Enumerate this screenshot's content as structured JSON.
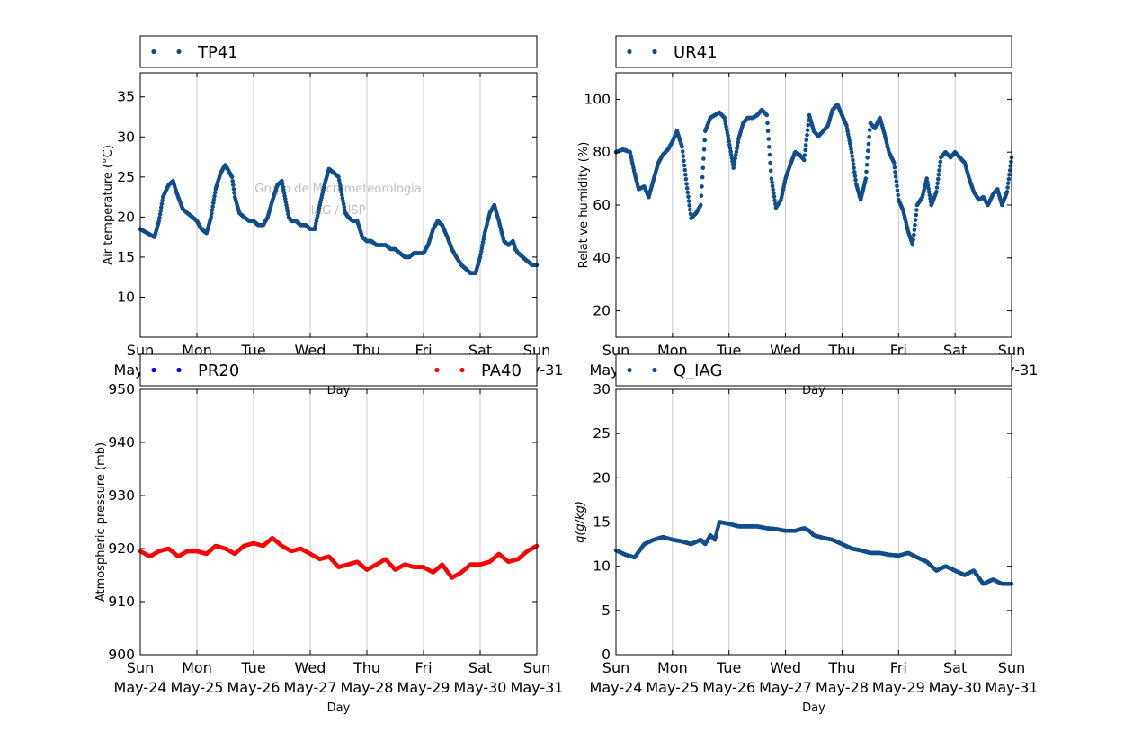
{
  "colors": {
    "dark_blue": "#104e8b",
    "blue": "#0000ff",
    "red": "#ff0000",
    "grid": "#c8c8c8",
    "watermark": "#c0c0c0"
  },
  "watermark": {
    "line1": "Grupo de Micrometeorologia",
    "line2": "IAG / USP"
  },
  "day_ticks": [
    {
      "day": "Sun",
      "date": "May-24"
    },
    {
      "day": "Mon",
      "date": "May-25"
    },
    {
      "day": "Tue",
      "date": "May-26"
    },
    {
      "day": "Wed",
      "date": "May-27"
    },
    {
      "day": "Thu",
      "date": "May-28"
    },
    {
      "day": "Fri",
      "date": "May-29"
    },
    {
      "day": "Sat",
      "date": "May-30"
    },
    {
      "day": "Sun",
      "date": "May-31"
    }
  ],
  "chart_data": [
    {
      "type": "scatter",
      "panel": "top-left",
      "xlabel": "Day",
      "ylabel": "Air temperature (°C)",
      "ylim": [
        5,
        38
      ],
      "yticks": [
        10,
        15,
        20,
        25,
        30,
        35
      ],
      "xlim": [
        0,
        7
      ],
      "grid": "vertical",
      "legend": "top",
      "series": [
        {
          "name": "TP41",
          "color": "#104e8b",
          "x": [
            0.0,
            0.125,
            0.25,
            0.33,
            0.4,
            0.5,
            0.58,
            0.62,
            0.67,
            0.75,
            0.83,
            0.92,
            1.0,
            1.08,
            1.17,
            1.25,
            1.33,
            1.42,
            1.5,
            1.58,
            1.62,
            1.67,
            1.75,
            1.83,
            1.92,
            2.0,
            2.08,
            2.17,
            2.25,
            2.33,
            2.42,
            2.5,
            2.58,
            2.62,
            2.67,
            2.75,
            2.83,
            2.92,
            3.0,
            3.08,
            3.17,
            3.25,
            3.33,
            3.42,
            3.5,
            3.58,
            3.62,
            3.67,
            3.75,
            3.83,
            3.92,
            4.0,
            4.08,
            4.17,
            4.25,
            4.33,
            4.42,
            4.5,
            4.58,
            4.67,
            4.75,
            4.83,
            4.92,
            5.0,
            5.08,
            5.17,
            5.25,
            5.33,
            5.42,
            5.5,
            5.58,
            5.67,
            5.75,
            5.83,
            5.92,
            6.0,
            6.08,
            6.17,
            6.25,
            6.33,
            6.42,
            6.5,
            6.58,
            6.62,
            6.67,
            6.75,
            6.83,
            6.92,
            7.0
          ],
          "y": [
            18.5,
            18.0,
            17.5,
            19.5,
            22.5,
            24.0,
            24.5,
            23.5,
            22.5,
            21.0,
            20.5,
            20.0,
            19.5,
            18.5,
            18.0,
            20.0,
            23.5,
            25.5,
            26.5,
            25.5,
            25.0,
            22.5,
            20.5,
            20.0,
            19.5,
            19.5,
            19.0,
            19.0,
            20.0,
            22.0,
            24.0,
            24.5,
            21.5,
            20.0,
            19.5,
            19.5,
            19.0,
            19.0,
            18.5,
            18.5,
            21.5,
            24.0,
            26.0,
            25.5,
            25.0,
            22.0,
            20.5,
            20.0,
            19.5,
            19.5,
            17.5,
            17.0,
            17.0,
            16.5,
            16.5,
            16.5,
            16.0,
            16.0,
            15.5,
            15.0,
            15.0,
            15.5,
            15.5,
            15.5,
            16.5,
            18.5,
            19.5,
            19.0,
            17.5,
            16.0,
            15.0,
            14.0,
            13.5,
            13.0,
            13.0,
            15.0,
            18.0,
            20.5,
            21.5,
            19.5,
            17.0,
            16.5,
            17.0,
            16.0,
            15.5,
            15.0,
            14.5,
            14.0,
            14.0
          ]
        }
      ]
    },
    {
      "type": "scatter",
      "panel": "top-right",
      "xlabel": "Day",
      "ylabel": "Relative humidity (%)",
      "ylim": [
        10,
        110
      ],
      "yticks": [
        20,
        40,
        60,
        80,
        100
      ],
      "xlim": [
        0,
        7
      ],
      "grid": "vertical",
      "legend": "top",
      "series": [
        {
          "name": "UR41",
          "color": "#104e8b",
          "x": [
            0.0,
            0.125,
            0.25,
            0.33,
            0.4,
            0.5,
            0.58,
            0.67,
            0.75,
            0.83,
            0.92,
            1.0,
            1.08,
            1.17,
            1.25,
            1.33,
            1.42,
            1.5,
            1.58,
            1.67,
            1.75,
            1.83,
            1.92,
            2.0,
            2.08,
            2.17,
            2.25,
            2.33,
            2.42,
            2.5,
            2.58,
            2.67,
            2.75,
            2.83,
            2.92,
            3.0,
            3.08,
            3.17,
            3.25,
            3.33,
            3.42,
            3.5,
            3.58,
            3.67,
            3.75,
            3.83,
            3.92,
            4.0,
            4.08,
            4.17,
            4.25,
            4.33,
            4.42,
            4.5,
            4.58,
            4.67,
            4.75,
            4.83,
            4.92,
            5.0,
            5.08,
            5.17,
            5.25,
            5.33,
            5.42,
            5.5,
            5.58,
            5.67,
            5.75,
            5.83,
            5.92,
            6.0,
            6.08,
            6.17,
            6.25,
            6.33,
            6.42,
            6.5,
            6.58,
            6.67,
            6.75,
            6.83,
            6.92,
            7.0
          ],
          "y": [
            80.0,
            81.0,
            80.0,
            72.0,
            66.0,
            67.0,
            63.0,
            70.0,
            76.0,
            79.0,
            81.0,
            84.0,
            88.0,
            82.0,
            68.0,
            55.0,
            57.0,
            60.0,
            88.0,
            93.0,
            94.0,
            95.0,
            93.0,
            84.0,
            74.0,
            85.0,
            91.0,
            93.0,
            93.0,
            94.0,
            96.0,
            94.0,
            70.0,
            59.0,
            62.0,
            70.0,
            75.0,
            80.0,
            79.0,
            77.0,
            94.0,
            88.0,
            86.0,
            88.0,
            90.0,
            96.0,
            98.0,
            94.0,
            90.0,
            80.0,
            68.0,
            62.0,
            70.0,
            91.0,
            89.0,
            93.0,
            87.0,
            80.0,
            76.0,
            62.0,
            58.0,
            50.0,
            45.0,
            60.0,
            63.0,
            70.0,
            60.0,
            65.0,
            78.0,
            80.0,
            78.0,
            80.0,
            78.0,
            76.0,
            70.0,
            65.0,
            62.0,
            63.0,
            60.0,
            64.0,
            66.0,
            60.0,
            65.0,
            78.0
          ]
        }
      ]
    },
    {
      "type": "scatter",
      "panel": "bottom-left",
      "xlabel": "Day",
      "ylabel": "Atmospheric pressure (mb)",
      "ylim": [
        900,
        950
      ],
      "yticks": [
        900,
        910,
        920,
        930,
        940,
        950
      ],
      "xlim": [
        0,
        7
      ],
      "grid": "vertical",
      "legend": "top",
      "series": [
        {
          "name": "PR20",
          "color": "#0000ff",
          "x": [],
          "y": []
        },
        {
          "name": "PA40",
          "color": "#ff0000",
          "x": [
            0.0,
            0.17,
            0.33,
            0.5,
            0.67,
            0.83,
            1.0,
            1.17,
            1.33,
            1.5,
            1.67,
            1.83,
            2.0,
            2.17,
            2.33,
            2.5,
            2.67,
            2.83,
            3.0,
            3.17,
            3.33,
            3.5,
            3.67,
            3.83,
            4.0,
            4.17,
            4.33,
            4.5,
            4.67,
            4.83,
            5.0,
            5.17,
            5.33,
            5.5,
            5.67,
            5.83,
            6.0,
            6.17,
            6.33,
            6.5,
            6.67,
            6.83,
            7.0
          ],
          "y": [
            919.5,
            918.5,
            919.5,
            920.0,
            918.5,
            919.5,
            919.5,
            919.0,
            920.5,
            920.0,
            919.0,
            920.5,
            921.0,
            920.5,
            922.0,
            920.5,
            919.5,
            920.0,
            919.0,
            918.0,
            918.5,
            916.5,
            917.0,
            917.5,
            916.0,
            917.0,
            918.0,
            916.0,
            917.0,
            916.5,
            916.5,
            915.5,
            917.0,
            914.5,
            915.5,
            917.0,
            917.0,
            917.5,
            919.0,
            917.5,
            918.0,
            919.5,
            920.5
          ]
        }
      ]
    },
    {
      "type": "scatter",
      "panel": "bottom-right",
      "xlabel": "Day",
      "ylabel": "q(g/kg)",
      "ylim": [
        0,
        30
      ],
      "yticks": [
        0,
        5,
        10,
        15,
        20,
        25,
        30
      ],
      "xlim": [
        0,
        7
      ],
      "grid": "vertical",
      "legend": "top",
      "series": [
        {
          "name": "Q_IAG",
          "color": "#104e8b",
          "x": [
            0.0,
            0.17,
            0.33,
            0.5,
            0.67,
            0.83,
            1.0,
            1.17,
            1.33,
            1.5,
            1.58,
            1.67,
            1.75,
            1.83,
            2.0,
            2.17,
            2.33,
            2.5,
            2.67,
            2.83,
            3.0,
            3.17,
            3.33,
            3.42,
            3.5,
            3.67,
            3.83,
            4.0,
            4.17,
            4.33,
            4.5,
            4.67,
            4.83,
            5.0,
            5.17,
            5.33,
            5.5,
            5.67,
            5.83,
            6.0,
            6.17,
            6.33,
            6.5,
            6.67,
            6.83,
            7.0
          ],
          "y": [
            11.8,
            11.3,
            11.0,
            12.5,
            13.0,
            13.3,
            13.0,
            12.8,
            12.5,
            13.0,
            12.5,
            13.5,
            13.0,
            15.0,
            14.8,
            14.5,
            14.5,
            14.5,
            14.3,
            14.2,
            14.0,
            14.0,
            14.3,
            14.0,
            13.5,
            13.2,
            13.0,
            12.5,
            12.0,
            11.8,
            11.5,
            11.5,
            11.3,
            11.2,
            11.5,
            11.0,
            10.5,
            9.5,
            10.0,
            9.5,
            9.0,
            9.5,
            8.0,
            8.5,
            8.0,
            8.0
          ]
        }
      ]
    }
  ]
}
